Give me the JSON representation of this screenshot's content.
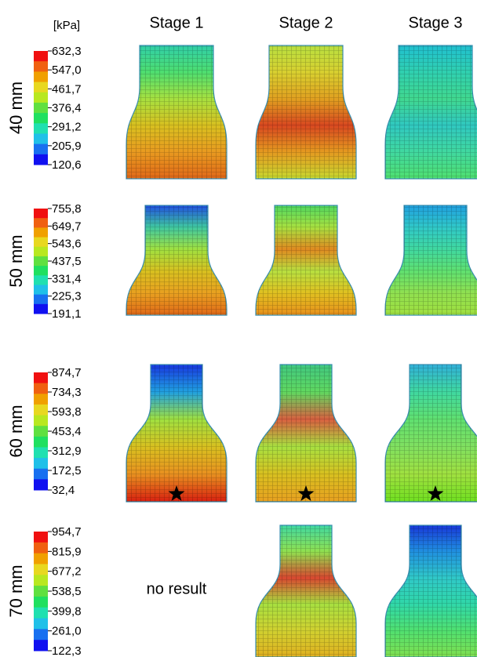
{
  "unit": "[kPa]",
  "columns": [
    "Stage 1",
    "Stage 2",
    "Stage 3"
  ],
  "rows": [
    {
      "label": "40 mm",
      "scale": [
        "632,3",
        "547,0",
        "461,7",
        "376,4",
        "291,2",
        "205,9",
        "120,6"
      ]
    },
    {
      "label": "50 mm",
      "scale": [
        "755,8",
        "649,7",
        "543,6",
        "437,5",
        "331,4",
        "225,3",
        "191,1"
      ]
    },
    {
      "label": "60 mm",
      "scale": [
        "874,7",
        "734,3",
        "593,8",
        "453,4",
        "312,9",
        "172,5",
        "32,4"
      ]
    },
    {
      "label": "70 mm",
      "scale": [
        "954,7",
        "815,9",
        "677,2",
        "538,5",
        "399,8",
        "261,0",
        "122,3"
      ]
    }
  ],
  "no_result": "no result"
}
